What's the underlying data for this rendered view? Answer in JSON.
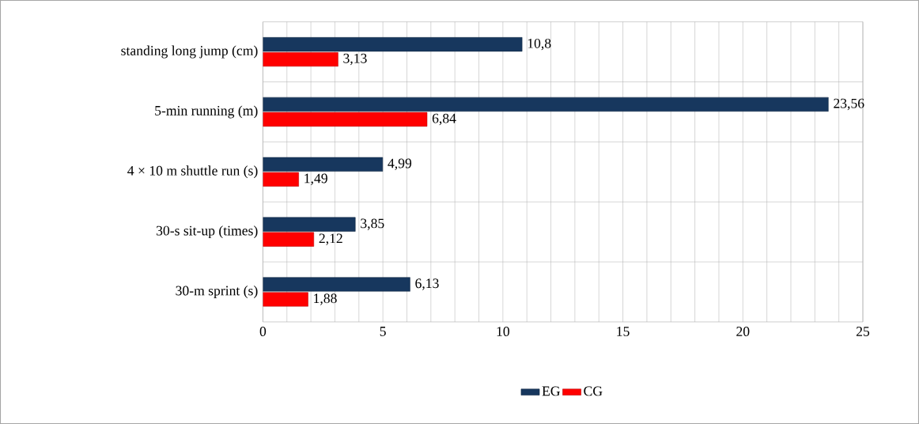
{
  "chart_data": {
    "type": "bar",
    "orientation": "horizontal",
    "categories": [
      "standing long jump (cm)",
      "5-min running (m)",
      "4 × 10 m shuttle run (s)",
      "30-s sit-up (times)",
      "30-m sprint (s)"
    ],
    "series": [
      {
        "name": "EG",
        "color": "#17375e",
        "values": [
          10.8,
          23.56,
          4.99,
          3.85,
          6.13
        ],
        "value_labels": [
          "10,8",
          "23,56",
          "4,99",
          "3,85",
          "6,13"
        ]
      },
      {
        "name": "CG",
        "color": "#ff0000",
        "values": [
          3.13,
          6.84,
          1.49,
          2.12,
          1.88
        ],
        "value_labels": [
          "3,13",
          "6,84",
          "1,49",
          "2,12",
          "1,88"
        ]
      }
    ],
    "xlim": [
      0,
      25
    ],
    "xticks": [
      0,
      5,
      10,
      15,
      20,
      25
    ],
    "grid": true,
    "legend": "bottom"
  }
}
